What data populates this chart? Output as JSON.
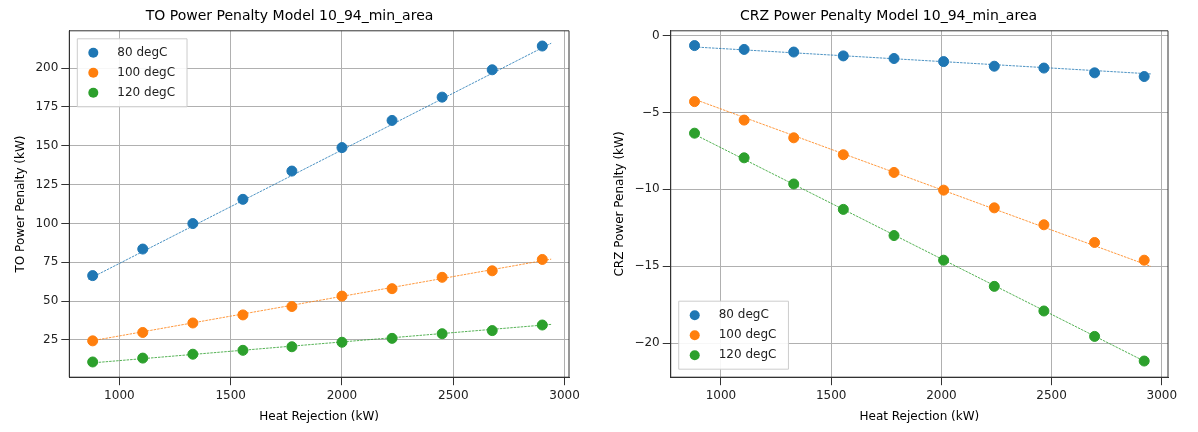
{
  "chart_data": [
    {
      "type": "scatter",
      "title": "TO Power Penalty Model 10_94_min_area",
      "xlabel": "Heat Rejection (kW)",
      "ylabel": "TO Power Penalty (kW)",
      "x": [
        880,
        1105,
        1330,
        1555,
        1775,
        2000,
        2225,
        2450,
        2675,
        2900
      ],
      "series": [
        {
          "name": "80 degC",
          "color": "#1f77b4",
          "values": [
            66.4,
            83.5,
            99.9,
            115.5,
            133.7,
            148.8,
            166.3,
            181.3,
            198.9,
            214.2
          ]
        },
        {
          "name": "100 degC",
          "color": "#ff7f0e",
          "values": [
            24.4,
            29.8,
            35.9,
            41.1,
            46.5,
            53.2,
            58,
            65.3,
            69.5,
            76.8
          ]
        },
        {
          "name": "120 degC",
          "color": "#2ca02c",
          "values": [
            10.8,
            13.3,
            15.8,
            18.3,
            20.6,
            23.5,
            26,
            29,
            31,
            34.6
          ]
        },
        {
          "type": "line",
          "color": "#1f77b4",
          "x": [
            860,
            2940
          ],
          "values": [
            64,
            216
          ],
          "marker": "none",
          "line_style": "dashed"
        },
        {
          "type": "line",
          "color": "#ff7f0e",
          "x": [
            860,
            2940
          ],
          "values": [
            24,
            77
          ],
          "marker": "none",
          "line_style": "dashed"
        },
        {
          "type": "line",
          "color": "#2ca02c",
          "x": [
            860,
            2940
          ],
          "values": [
            10,
            35
          ],
          "marker": "none",
          "line_style": "dashed"
        }
      ],
      "xlim": [
        775,
        3020
      ],
      "xticks": [
        1000,
        1500,
        2000,
        2500,
        3000
      ],
      "ylim": [
        1,
        224
      ],
      "yticks": [
        25,
        50,
        75,
        100,
        125,
        150,
        175,
        200
      ],
      "grid": true,
      "legend": "top left",
      "marker": "circle"
    },
    {
      "type": "scatter",
      "title": "CRZ Power Penalty Model 10_94_min_area",
      "xlabel": "Heat Rejection (kW)",
      "ylabel": "CRZ Power Penalty (kW)",
      "x": [
        880,
        1105,
        1330,
        1555,
        1785,
        2010,
        2240,
        2465,
        2695,
        2920
      ],
      "series": [
        {
          "name": "80 degC",
          "color": "#1f77b4",
          "values": [
            -0.66,
            -0.91,
            -1.08,
            -1.33,
            -1.5,
            -1.7,
            -2.0,
            -2.12,
            -2.43,
            -2.67
          ]
        },
        {
          "name": "100 degC",
          "color": "#ff7f0e",
          "values": [
            -4.3,
            -5.5,
            -6.65,
            -7.75,
            -8.9,
            -10.05,
            -11.2,
            -12.3,
            -13.45,
            -14.6
          ]
        },
        {
          "name": "120 degC",
          "color": "#2ca02c",
          "values": [
            -6.35,
            -7.95,
            -9.65,
            -11.3,
            -13,
            -14.6,
            -16.3,
            -17.9,
            -19.55,
            -21.15
          ]
        },
        {
          "type": "line",
          "color": "#1f77b4",
          "x": [
            880,
            2950
          ],
          "values": [
            -0.75,
            -2.5
          ],
          "marker": "none",
          "line_style": "dashed"
        },
        {
          "type": "line",
          "color": "#ff7f0e",
          "x": [
            890,
            2950
          ],
          "values": [
            -4.2,
            -15.0
          ],
          "marker": "none",
          "line_style": "dashed"
        },
        {
          "type": "line",
          "color": "#2ca02c",
          "x": [
            890,
            2940
          ],
          "values": [
            -6.5,
            -21.3
          ],
          "marker": "none",
          "line_style": "dashed"
        }
      ],
      "xlim": [
        772,
        3028
      ],
      "xticks": [
        1000,
        1500,
        2000,
        2500,
        3000
      ],
      "ylim": [
        -22.2,
        0.3
      ],
      "yticks": [
        0,
        -5,
        -10,
        -15,
        -20
      ],
      "grid": true,
      "legend": "bottom left",
      "marker": "circle"
    }
  ]
}
